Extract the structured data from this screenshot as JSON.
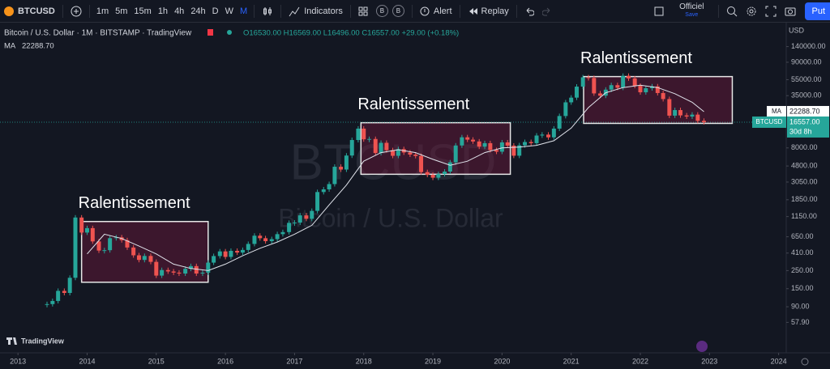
{
  "toolbar": {
    "symbol": "BTCUSD",
    "intervals": [
      "1m",
      "5m",
      "15m",
      "1h",
      "4h",
      "24h",
      "D",
      "W",
      "M"
    ],
    "indicators": "Indicators",
    "badges": [
      "B",
      "B"
    ],
    "alert": "Alert",
    "replay": "Replay",
    "layout_name": "Officiel",
    "save": "Save",
    "publish": "Put"
  },
  "legend": {
    "title": "Bitcoin / U.S. Dollar · 1M · BITSTAMP · TradingView",
    "ohlc": "O16530.00 H16569.00 L16496.00 C16557.00 +29.00 (+0.18%)",
    "ma_name": "MA",
    "ma_value": "22288.70"
  },
  "watermark": {
    "symbol": "BTCUSD",
    "description": "Bitcoin / U.S. Dollar"
  },
  "branding": "TradingView",
  "chart_data": {
    "type": "candlestick",
    "currency": "USD",
    "log_scale": true,
    "up_color": "#26a69a",
    "down_color": "#ef5350",
    "xlim": [
      2012.74,
      2024.11
    ],
    "ylim": [
      24.5,
      263000
    ],
    "xticks": [
      2013,
      2014,
      2015,
      2016,
      2017,
      2018,
      2019,
      2020,
      2021,
      2022,
      2023,
      2024
    ],
    "yticks": [
      {
        "value": 140000,
        "label": "140000.00"
      },
      {
        "value": 90000,
        "label": "90000.00"
      },
      {
        "value": 55000,
        "label": "55000.00"
      },
      {
        "value": 35000,
        "label": "35000.00"
      },
      {
        "value": 8000,
        "label": "8000.00"
      },
      {
        "value": 4800,
        "label": "4800.00"
      },
      {
        "value": 3050,
        "label": "3050.00"
      },
      {
        "value": 1850,
        "label": "1850.00"
      },
      {
        "value": 1150,
        "label": "1150.00"
      },
      {
        "value": 650,
        "label": "650.00"
      },
      {
        "value": 410,
        "label": "410.00"
      },
      {
        "value": 250,
        "label": "250.00"
      },
      {
        "value": 150,
        "label": "150.00"
      },
      {
        "value": 90,
        "label": "90.00"
      },
      {
        "value": 57.9,
        "label": "57.90"
      }
    ],
    "series": [
      {
        "name": "BTCUSD",
        "x": [
          2013.42,
          2013.5,
          2013.58,
          2013.67,
          2013.75,
          2013.83,
          2013.92,
          2014,
          2014.08,
          2014.17,
          2014.25,
          2014.33,
          2014.42,
          2014.5,
          2014.58,
          2014.67,
          2014.75,
          2014.83,
          2014.92,
          2015,
          2015.08,
          2015.17,
          2015.25,
          2015.33,
          2015.42,
          2015.5,
          2015.58,
          2015.67,
          2015.75,
          2015.83,
          2015.92,
          2016,
          2016.08,
          2016.17,
          2016.25,
          2016.33,
          2016.42,
          2016.5,
          2016.58,
          2016.67,
          2016.75,
          2016.83,
          2016.92,
          2017,
          2017.08,
          2017.17,
          2017.25,
          2017.33,
          2017.42,
          2017.5,
          2017.58,
          2017.67,
          2017.75,
          2017.83,
          2017.92,
          2018,
          2018.08,
          2018.17,
          2018.25,
          2018.33,
          2018.42,
          2018.5,
          2018.58,
          2018.67,
          2018.75,
          2018.83,
          2018.92,
          2019,
          2019.08,
          2019.17,
          2019.25,
          2019.33,
          2019.42,
          2019.5,
          2019.58,
          2019.67,
          2019.75,
          2019.83,
          2019.92,
          2020,
          2020.08,
          2020.17,
          2020.25,
          2020.33,
          2020.42,
          2020.5,
          2020.58,
          2020.67,
          2020.75,
          2020.83,
          2020.92,
          2021,
          2021.08,
          2021.17,
          2021.25,
          2021.33,
          2021.42,
          2021.5,
          2021.58,
          2021.67,
          2021.75,
          2021.83,
          2021.92,
          2022,
          2022.08,
          2022.17,
          2022.25,
          2022.33,
          2022.42,
          2022.5,
          2022.58,
          2022.67,
          2022.75,
          2022.83,
          2022.92
        ],
        "values": [
          97,
          106,
          141,
          133,
          204,
          1120,
          732,
          830,
          570,
          440,
          445,
          625,
          640,
          590,
          480,
          385,
          338,
          378,
          320,
          217,
          254,
          244,
          236,
          230,
          263,
          284,
          230,
          236,
          313,
          377,
          430,
          368,
          437,
          416,
          448,
          531,
          670,
          624,
          574,
          608,
          700,
          742,
          963,
          970,
          1190,
          1080,
          1350,
          2300,
          2480,
          2880,
          4700,
          4340,
          6450,
          10000,
          13800,
          10200,
          10300,
          6920,
          9240,
          7500,
          6400,
          7730,
          7030,
          6630,
          6370,
          4040,
          3740,
          3450,
          3820,
          4100,
          5320,
          8570,
          10800,
          10100,
          9600,
          8290,
          9150,
          7540,
          7190,
          9350,
          8540,
          6420,
          8620,
          9450,
          9140,
          11350,
          11650,
          10780,
          13800,
          19700,
          28990,
          33100,
          45200,
          58800,
          57700,
          37300,
          35000,
          41500,
          47100,
          43800,
          61300,
          57000,
          46200,
          38500,
          43200,
          45500,
          37700,
          31800,
          19900,
          23300,
          20050,
          19400,
          20500,
          17200,
          16557
        ]
      },
      {
        "name": "MA",
        "color": "#e0e3eb",
        "x": [
          2014,
          2014.25,
          2014.5,
          2014.75,
          2015,
          2015.25,
          2015.5,
          2015.75,
          2016,
          2016.25,
          2016.5,
          2016.75,
          2017,
          2017.25,
          2017.5,
          2017.75,
          2018,
          2018.25,
          2018.5,
          2018.75,
          2019,
          2019.25,
          2019.5,
          2019.75,
          2020,
          2020.25,
          2020.5,
          2020.75,
          2021,
          2021.25,
          2021.5,
          2021.75,
          2022,
          2022.25,
          2022.5,
          2022.75,
          2022.92
        ],
        "values": [
          400,
          700,
          620,
          500,
          400,
          300,
          265,
          250,
          300,
          380,
          470,
          560,
          700,
          900,
          1600,
          2800,
          5500,
          7000,
          7600,
          7000,
          5800,
          4900,
          5500,
          7000,
          8000,
          8200,
          8600,
          9800,
          14000,
          25000,
          38000,
          44000,
          47000,
          44000,
          37000,
          29000,
          22288.7
        ]
      }
    ],
    "last_price": {
      "symbol": "BTCUSD",
      "value": 16557,
      "value_label": "16557.00",
      "countdown": "30d 8h"
    },
    "ma_label": {
      "name": "MA",
      "value": 22288.7,
      "value_label": "22288.70"
    },
    "annotations": [
      {
        "text": "Ralentissement",
        "x0": 2013.92,
        "x1": 2015.75,
        "y0": 180,
        "y1": 1000
      },
      {
        "text": "Ralentissement",
        "x0": 2017.96,
        "x1": 2020.12,
        "y0": 3800,
        "y1": 16300
      },
      {
        "text": "Ralentissement",
        "x0": 2021.18,
        "x1": 2023.33,
        "y0": 16000,
        "y1": 60000
      }
    ]
  }
}
